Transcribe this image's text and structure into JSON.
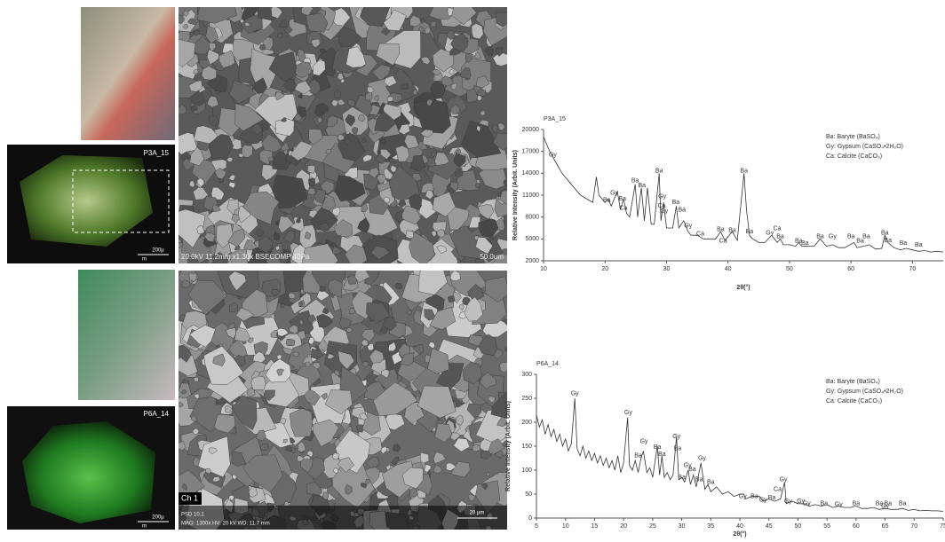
{
  "panels": {
    "micrograph_top": {
      "label": "P3A_15",
      "scale_value": "200µ",
      "scale_unit": "m"
    },
    "sem_top": {
      "info": "20.0kV 11.2mm x1.30k BSECOMP 40Pa",
      "scale": "50.0um"
    },
    "micrograph_bottom": {
      "label": "P6A_14",
      "scale_value": "200µ",
      "scale_unit": "m"
    },
    "sem_bottom": {
      "channel": "Ch 1",
      "detector": "PSD 10.1",
      "info": "MAG: 1300x   HV: 20 kV   WD: 11.7 mm",
      "scale": "20 µm"
    }
  },
  "chart_data": [
    {
      "type": "line",
      "title": "P3A_15",
      "y_label": "Relative Intensity (Arbit. Units)",
      "x_label": "2θ(°)",
      "color": "#333333",
      "key": [
        "Ba: Baryte (BaSO₄)",
        "Gy: Gypsum (CaSO₄•2H₂O)",
        "Ca: Calcite (CaCO₃)"
      ],
      "xlim": [
        10,
        75
      ],
      "ylim": [
        2000,
        20000
      ],
      "xticks": [
        10,
        20,
        30,
        40,
        50,
        60,
        70
      ],
      "yticks": [
        2000,
        5000,
        8000,
        11000,
        14000,
        17000,
        20000
      ],
      "x": [
        10,
        11,
        12,
        13,
        14,
        15,
        16,
        17,
        18,
        18.6,
        19,
        20,
        20.5,
        21,
        22,
        22.5,
        23,
        23.5,
        24,
        24.9,
        25.3,
        25.9,
        26.4,
        26.9,
        27.5,
        28,
        28.8,
        29.1,
        29.5,
        30,
        31,
        31.6,
        32,
        32.8,
        33.5,
        34,
        35,
        36,
        37,
        38,
        38.8,
        39.5,
        40.7,
        41.5,
        42.6,
        43,
        43.5,
        44,
        45,
        46,
        47.1,
        48,
        48.5,
        49,
        50,
        51,
        51.5,
        52,
        53,
        54,
        55,
        56,
        57,
        58,
        59,
        60.5,
        61,
        62,
        63,
        64,
        65,
        65.5,
        66,
        67,
        68,
        69,
        70,
        71,
        72,
        73,
        74,
        75
      ],
      "values": [
        19000,
        17000,
        15500,
        14000,
        13000,
        12000,
        11000,
        10500,
        10000,
        13500,
        11000,
        10000,
        10500,
        9500,
        11500,
        9000,
        10500,
        8500,
        8000,
        12500,
        8000,
        12000,
        7500,
        12000,
        7000,
        7000,
        14000,
        7500,
        10000,
        6500,
        6500,
        9500,
        6500,
        7500,
        6000,
        5500,
        5500,
        5000,
        5000,
        5000,
        6000,
        4800,
        6000,
        4800,
        14000,
        9000,
        5500,
        5000,
        4500,
        4500,
        5500,
        4500,
        5000,
        4200,
        4200,
        4000,
        4500,
        4000,
        4000,
        4000,
        5000,
        4000,
        4200,
        3800,
        3800,
        4500,
        3800,
        4000,
        4200,
        3600,
        3700,
        5500,
        4500,
        3800,
        3500,
        3700,
        3500,
        3300,
        3400,
        3200,
        3300,
        3200
      ],
      "annotations": [
        {
          "text": "Gy",
          "x": 11.5,
          "y": 16500
        },
        {
          "text": "Gy",
          "x": 21.5,
          "y": 11300
        },
        {
          "text": "Ba",
          "x": 20.3,
          "y": 10300
        },
        {
          "text": "Ba",
          "x": 22.8,
          "y": 10500
        },
        {
          "text": "Ca",
          "x": 23,
          "y": 9200
        },
        {
          "text": "Ba",
          "x": 24.9,
          "y": 13000
        },
        {
          "text": "Ba",
          "x": 26,
          "y": 12300
        },
        {
          "text": "Ba",
          "x": 28.8,
          "y": 14300
        },
        {
          "text": "Gy",
          "x": 29.3,
          "y": 10800
        },
        {
          "text": "Ca",
          "x": 29.2,
          "y": 9500
        },
        {
          "text": "Gy",
          "x": 29.6,
          "y": 8800
        },
        {
          "text": "Ba",
          "x": 31.5,
          "y": 10000
        },
        {
          "text": "Ba",
          "x": 32.5,
          "y": 9000
        },
        {
          "text": "Gy",
          "x": 33.5,
          "y": 6800
        },
        {
          "text": "Ca",
          "x": 35.5,
          "y": 5700
        },
        {
          "text": "Ba",
          "x": 38.8,
          "y": 6300
        },
        {
          "text": "Ca",
          "x": 39.2,
          "y": 4700
        },
        {
          "text": "Ba",
          "x": 40.7,
          "y": 6200
        },
        {
          "text": "Ba",
          "x": 42.6,
          "y": 14300
        },
        {
          "text": "Ba",
          "x": 43.5,
          "y": 6000
        },
        {
          "text": "Gy",
          "x": 46.8,
          "y": 5800
        },
        {
          "text": "Ca",
          "x": 48,
          "y": 6400
        },
        {
          "text": "Ba",
          "x": 48.5,
          "y": 5300
        },
        {
          "text": "Ba",
          "x": 51.5,
          "y": 4700
        },
        {
          "text": "Ba",
          "x": 52.5,
          "y": 4400
        },
        {
          "text": "Ba",
          "x": 55,
          "y": 5300
        },
        {
          "text": "Gy",
          "x": 57,
          "y": 5300
        },
        {
          "text": "Ba",
          "x": 60,
          "y": 5300
        },
        {
          "text": "Ba",
          "x": 61.5,
          "y": 4700
        },
        {
          "text": "Ba",
          "x": 62.5,
          "y": 5300
        },
        {
          "text": "Ba",
          "x": 65.5,
          "y": 5800
        },
        {
          "text": "Ba",
          "x": 66,
          "y": 4800
        },
        {
          "text": "Ba",
          "x": 68.5,
          "y": 4400
        },
        {
          "text": "Ba",
          "x": 71,
          "y": 4200
        }
      ]
    },
    {
      "type": "line",
      "title": "P6A_14",
      "y_label": "Relative Intensity (Arbit. Units)",
      "x_label": "2θ(°)",
      "color": "#333333",
      "key": [
        "Ba: Baryte (BaSO₄)",
        "Gy: Gypsum (CaSO₄•2H₂O)",
        "Ca: Calcite (CaCO₃)"
      ],
      "xlim": [
        5,
        75
      ],
      "ylim": [
        0,
        300
      ],
      "xticks": [
        5,
        10,
        15,
        20,
        25,
        30,
        35,
        40,
        45,
        50,
        55,
        60,
        65,
        70,
        75
      ],
      "yticks": [
        0,
        50,
        100,
        150,
        200,
        250,
        300
      ],
      "x": [
        5,
        5.5,
        6,
        6.5,
        7,
        7.5,
        8,
        8.5,
        9,
        9.5,
        10,
        10.5,
        11,
        11.6,
        12,
        12.5,
        13,
        13.5,
        14,
        14.5,
        15,
        15.5,
        16,
        16.5,
        17,
        17.5,
        18,
        18.5,
        19,
        19.5,
        20,
        20.7,
        21,
        21.5,
        22,
        22.5,
        23,
        23.4,
        24,
        24.5,
        25,
        25.8,
        26.2,
        26.6,
        27,
        27.5,
        28,
        28.5,
        29.1,
        29.5,
        30,
        30.5,
        31.1,
        31.5,
        32,
        32.5,
        33.3,
        34,
        34.5,
        35,
        36,
        37,
        38,
        39,
        40,
        40.7,
        41,
        42,
        43.4,
        44,
        45,
        46,
        47,
        47.7,
        48,
        49,
        50,
        51,
        52,
        53,
        54,
        55,
        56,
        57,
        58,
        59,
        60,
        61,
        62,
        63,
        64,
        65,
        66,
        67,
        68,
        69,
        70,
        71,
        72,
        73,
        74,
        75
      ],
      "values": [
        215,
        190,
        205,
        175,
        195,
        170,
        185,
        160,
        175,
        150,
        165,
        140,
        155,
        250,
        145,
        130,
        150,
        125,
        140,
        120,
        135,
        115,
        130,
        110,
        125,
        105,
        120,
        100,
        130,
        95,
        115,
        210,
        110,
        100,
        120,
        95,
        125,
        140,
        95,
        105,
        85,
        150,
        90,
        130,
        85,
        95,
        80,
        90,
        170,
        80,
        85,
        75,
        100,
        70,
        90,
        65,
        115,
        60,
        70,
        55,
        65,
        50,
        55,
        45,
        50,
        50,
        40,
        45,
        45,
        35,
        40,
        35,
        40,
        75,
        30,
        35,
        30,
        30,
        25,
        28,
        25,
        28,
        22,
        25,
        22,
        22,
        25,
        20,
        20,
        22,
        18,
        20,
        18,
        18,
        20,
        16,
        18,
        15,
        16,
        15,
        15,
        14
      ],
      "annotations": [
        {
          "text": "Gy",
          "x": 11.6,
          "y": 260
        },
        {
          "text": "Gy",
          "x": 20.8,
          "y": 220
        },
        {
          "text": "Gy",
          "x": 23.5,
          "y": 160
        },
        {
          "text": "Ba",
          "x": 22.5,
          "y": 130
        },
        {
          "text": "Ba",
          "x": 25.8,
          "y": 148
        },
        {
          "text": "Ba",
          "x": 26.6,
          "y": 133
        },
        {
          "text": "Gy",
          "x": 29.1,
          "y": 170
        },
        {
          "text": "Ba",
          "x": 29.3,
          "y": 145
        },
        {
          "text": "Gy",
          "x": 33.5,
          "y": 125
        },
        {
          "text": "Gy",
          "x": 31,
          "y": 110
        },
        {
          "text": "Ba",
          "x": 31.8,
          "y": 102
        },
        {
          "text": "Ba",
          "x": 30,
          "y": 85
        },
        {
          "text": "Ba",
          "x": 33,
          "y": 80
        },
        {
          "text": "Ba",
          "x": 35,
          "y": 75
        },
        {
          "text": "Gy",
          "x": 40.5,
          "y": 45
        },
        {
          "text": "Ba",
          "x": 42.5,
          "y": 45
        },
        {
          "text": "Gy",
          "x": 44,
          "y": 38
        },
        {
          "text": "Ba",
          "x": 45.5,
          "y": 42
        },
        {
          "text": "Ca",
          "x": 46.5,
          "y": 60
        },
        {
          "text": "Gy",
          "x": 47.5,
          "y": 80
        },
        {
          "text": "Gy",
          "x": 48.3,
          "y": 35
        },
        {
          "text": "Gy",
          "x": 50.5,
          "y": 35
        },
        {
          "text": "Gy",
          "x": 51.5,
          "y": 30
        },
        {
          "text": "Ba",
          "x": 54.5,
          "y": 30
        },
        {
          "text": "Gy",
          "x": 57,
          "y": 28
        },
        {
          "text": "Ba",
          "x": 60,
          "y": 30
        },
        {
          "text": "Ba",
          "x": 64,
          "y": 30
        },
        {
          "text": "Gy",
          "x": 65,
          "y": 25
        },
        {
          "text": "Ba",
          "x": 65.5,
          "y": 30
        },
        {
          "text": "Ba",
          "x": 68,
          "y": 30
        }
      ]
    }
  ]
}
